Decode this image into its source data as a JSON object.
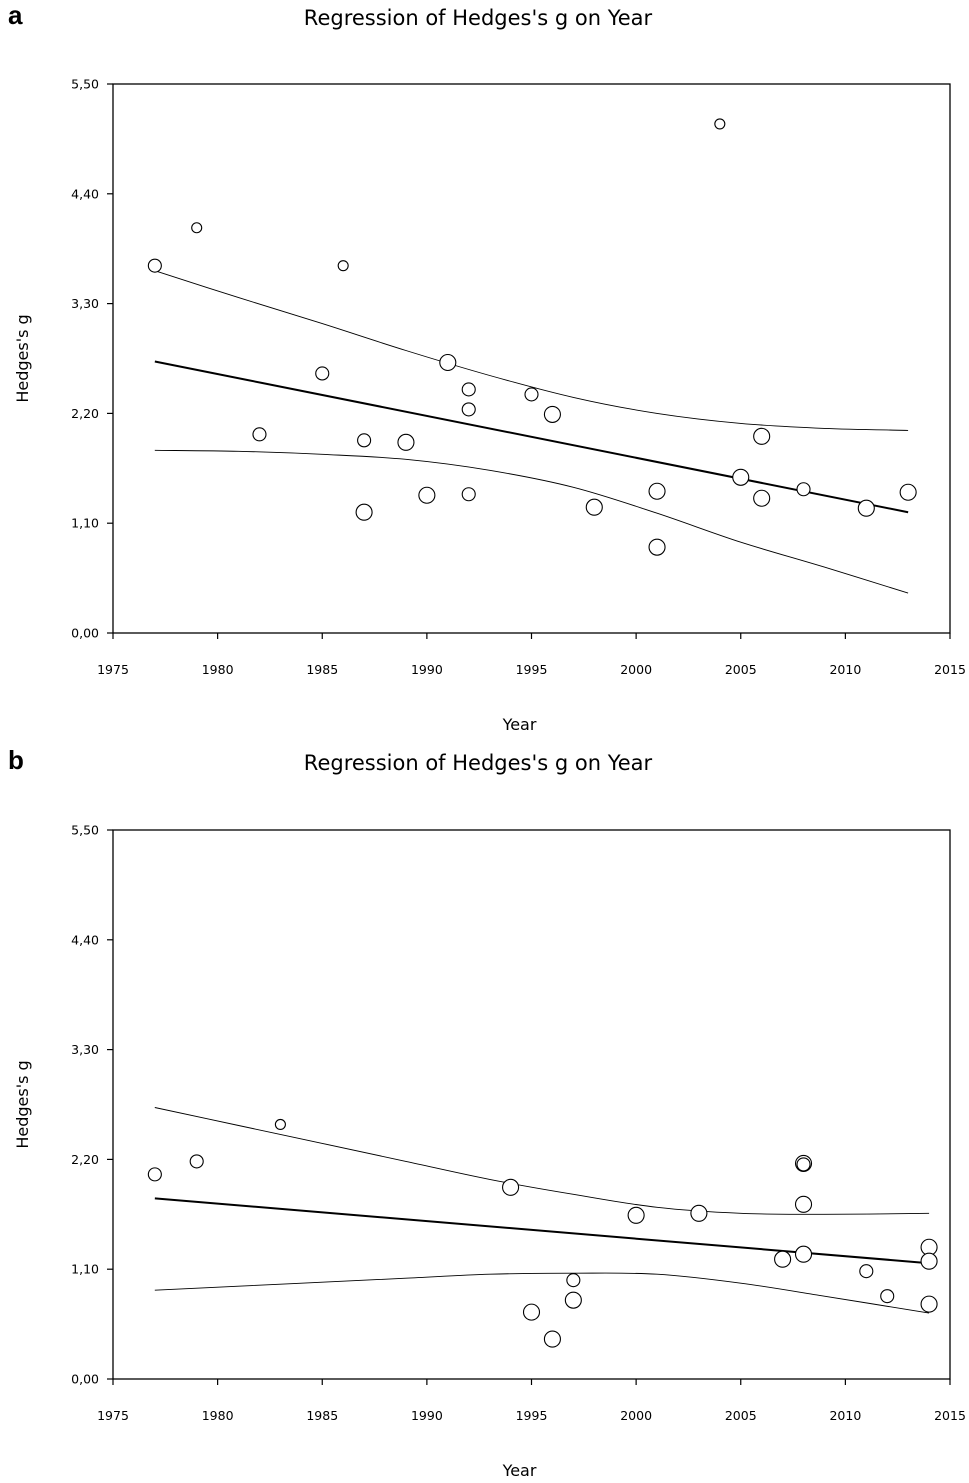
{
  "chart_data": [
    {
      "panel_label": "a",
      "type": "scatter",
      "title": "Regression of Hedges's g on Year",
      "xlabel": "Year",
      "ylabel": "Hedges's g",
      "xlim": [
        1975,
        2015
      ],
      "ylim": [
        0,
        5.5
      ],
      "xticks": [
        "1975",
        "1980",
        "1985",
        "1990",
        "1995",
        "2000",
        "2005",
        "2010",
        "2015"
      ],
      "yticks": [
        "0,00",
        "1,10",
        "2,20",
        "3,30",
        "4,40",
        "5,50"
      ],
      "grid": false,
      "points": [
        {
          "x": 1977,
          "y": 3.68,
          "size": "medium"
        },
        {
          "x": 1979,
          "y": 4.06,
          "size": "small"
        },
        {
          "x": 1982,
          "y": 1.99,
          "size": "medium"
        },
        {
          "x": 1985,
          "y": 2.6,
          "size": "medium"
        },
        {
          "x": 1986,
          "y": 3.68,
          "size": "small"
        },
        {
          "x": 1987,
          "y": 1.93,
          "size": "medium"
        },
        {
          "x": 1987,
          "y": 1.21,
          "size": "large"
        },
        {
          "x": 1989,
          "y": 1.91,
          "size": "large"
        },
        {
          "x": 1990,
          "y": 1.38,
          "size": "large"
        },
        {
          "x": 1991,
          "y": 2.71,
          "size": "large"
        },
        {
          "x": 1992,
          "y": 2.44,
          "size": "medium"
        },
        {
          "x": 1992,
          "y": 2.24,
          "size": "medium"
        },
        {
          "x": 1992,
          "y": 1.39,
          "size": "medium"
        },
        {
          "x": 1995,
          "y": 2.39,
          "size": "medium"
        },
        {
          "x": 1996,
          "y": 2.19,
          "size": "large"
        },
        {
          "x": 1998,
          "y": 1.26,
          "size": "large"
        },
        {
          "x": 2001,
          "y": 1.42,
          "size": "large"
        },
        {
          "x": 2001,
          "y": 0.86,
          "size": "large"
        },
        {
          "x": 2004,
          "y": 5.1,
          "size": "small"
        },
        {
          "x": 2005,
          "y": 1.56,
          "size": "large"
        },
        {
          "x": 2006,
          "y": 1.97,
          "size": "large"
        },
        {
          "x": 2006,
          "y": 1.35,
          "size": "large"
        },
        {
          "x": 2008,
          "y": 1.44,
          "size": "medium"
        },
        {
          "x": 2011,
          "y": 1.25,
          "size": "large"
        },
        {
          "x": 2013,
          "y": 1.41,
          "size": "large"
        }
      ],
      "regression": [
        [
          1977,
          2.72
        ],
        [
          2013,
          1.21
        ]
      ],
      "ci_upper": [
        [
          1977,
          3.63
        ],
        [
          1981,
          3.36
        ],
        [
          1985,
          3.1
        ],
        [
          1989,
          2.83
        ],
        [
          1993,
          2.58
        ],
        [
          1997,
          2.36
        ],
        [
          2001,
          2.2
        ],
        [
          2005,
          2.1
        ],
        [
          2009,
          2.05
        ],
        [
          2013,
          2.03
        ]
      ],
      "ci_lower": [
        [
          1977,
          1.83
        ],
        [
          1981,
          1.82
        ],
        [
          1985,
          1.79
        ],
        [
          1989,
          1.74
        ],
        [
          1993,
          1.63
        ],
        [
          1997,
          1.46
        ],
        [
          2001,
          1.2
        ],
        [
          2005,
          0.91
        ],
        [
          2009,
          0.66
        ],
        [
          2013,
          0.4
        ]
      ]
    },
    {
      "panel_label": "b",
      "type": "scatter",
      "title": "Regression of Hedges's g on Year",
      "xlabel": "Year",
      "ylabel": "Hedges's g",
      "xlim": [
        1975,
        2015
      ],
      "ylim": [
        0,
        5.5
      ],
      "xticks": [
        "1975",
        "1980",
        "1985",
        "1990",
        "1995",
        "2000",
        "2005",
        "2010",
        "2015"
      ],
      "yticks": [
        "0,00",
        "1,10",
        "2,20",
        "3,30",
        "4,40",
        "5,50"
      ],
      "grid": false,
      "points": [
        {
          "x": 1977,
          "y": 2.05,
          "size": "medium"
        },
        {
          "x": 1979,
          "y": 2.18,
          "size": "medium"
        },
        {
          "x": 1983,
          "y": 2.55,
          "size": "small"
        },
        {
          "x": 1994,
          "y": 1.92,
          "size": "large"
        },
        {
          "x": 1995,
          "y": 0.67,
          "size": "large"
        },
        {
          "x": 1996,
          "y": 0.4,
          "size": "large"
        },
        {
          "x": 1997,
          "y": 0.99,
          "size": "medium"
        },
        {
          "x": 1997,
          "y": 0.79,
          "size": "large"
        },
        {
          "x": 2000,
          "y": 1.64,
          "size": "large"
        },
        {
          "x": 2003,
          "y": 1.66,
          "size": "large"
        },
        {
          "x": 2007,
          "y": 1.2,
          "size": "large"
        },
        {
          "x": 2008,
          "y": 2.16,
          "size": "large"
        },
        {
          "x": 2008,
          "y": 2.15,
          "size": "medium"
        },
        {
          "x": 2008,
          "y": 1.75,
          "size": "large"
        },
        {
          "x": 2008,
          "y": 1.25,
          "size": "large"
        },
        {
          "x": 2011,
          "y": 1.08,
          "size": "medium"
        },
        {
          "x": 2012,
          "y": 0.83,
          "size": "medium"
        },
        {
          "x": 2014,
          "y": 1.32,
          "size": "large"
        },
        {
          "x": 2014,
          "y": 1.18,
          "size": "large"
        },
        {
          "x": 2014,
          "y": 0.75,
          "size": "large"
        }
      ],
      "regression": [
        [
          1977,
          1.81
        ],
        [
          2014,
          1.16
        ]
      ],
      "ci_upper": [
        [
          1977,
          2.72
        ],
        [
          1981,
          2.54
        ],
        [
          1985,
          2.36
        ],
        [
          1989,
          2.18
        ],
        [
          1993,
          2.0
        ],
        [
          1997,
          1.85
        ],
        [
          2001,
          1.72
        ],
        [
          2005,
          1.66
        ],
        [
          2009,
          1.65
        ],
        [
          2014,
          1.66
        ]
      ],
      "ci_lower": [
        [
          1977,
          0.89
        ],
        [
          1981,
          0.93
        ],
        [
          1985,
          0.97
        ],
        [
          1989,
          1.01
        ],
        [
          1993,
          1.05
        ],
        [
          1997,
          1.06
        ],
        [
          2001,
          1.05
        ],
        [
          2005,
          0.96
        ],
        [
          2009,
          0.83
        ],
        [
          2014,
          0.66
        ]
      ]
    }
  ]
}
